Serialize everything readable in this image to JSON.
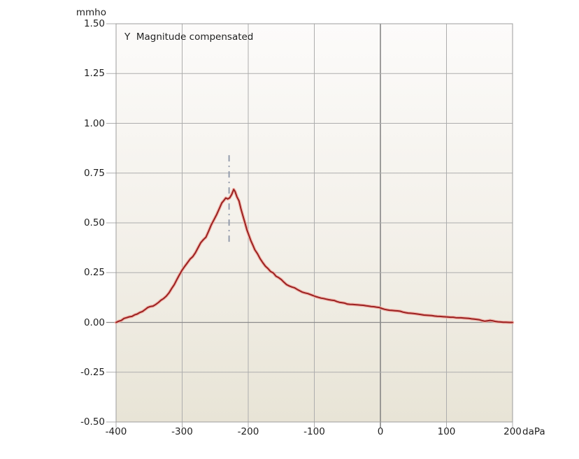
{
  "labels": {
    "y_axis_unit": "mmho",
    "x_axis_unit": "daPa",
    "title": "Y  Magnitude compensated"
  },
  "chart_data": {
    "type": "line",
    "title": "Y  Magnitude compensated",
    "ylabel": "mmho",
    "xlabel": "daPa",
    "xlim": [
      -400,
      200
    ],
    "ylim": [
      -0.5,
      1.5
    ],
    "grid": true,
    "x_ticks": [
      {
        "v": -400,
        "label": "-400"
      },
      {
        "v": -300,
        "label": "-300"
      },
      {
        "v": -200,
        "label": "-200"
      },
      {
        "v": -100,
        "label": "-100"
      },
      {
        "v": 0,
        "label": "0"
      },
      {
        "v": 100,
        "label": "100"
      },
      {
        "v": 200,
        "label": "200"
      }
    ],
    "y_ticks": [
      {
        "v": 1.5,
        "label": "1.50"
      },
      {
        "v": 1.25,
        "label": "1.25"
      },
      {
        "v": 1.0,
        "label": "1.00"
      },
      {
        "v": 0.75,
        "label": "0.75"
      },
      {
        "v": 0.5,
        "label": "0.50"
      },
      {
        "v": 0.25,
        "label": "0.25"
      },
      {
        "v": 0.0,
        "label": "0.00"
      },
      {
        "v": -0.25,
        "label": "-0.25"
      },
      {
        "v": -0.5,
        "label": "-0.50"
      }
    ],
    "peak_marker": {
      "x": -229,
      "y_from": 0.4,
      "y_to": 0.84,
      "style": "dash-dot"
    },
    "series": [
      {
        "name": "Y  Magnitude compensated",
        "peak_x": -222,
        "peak_y": 0.67,
        "points": [
          [
            -400,
            0.0
          ],
          [
            -396,
            0.006
          ],
          [
            -392,
            0.01
          ],
          [
            -388,
            0.02
          ],
          [
            -384,
            0.024
          ],
          [
            -380,
            0.028
          ],
          [
            -376,
            0.03
          ],
          [
            -372,
            0.038
          ],
          [
            -368,
            0.042
          ],
          [
            -364,
            0.05
          ],
          [
            -360,
            0.055
          ],
          [
            -356,
            0.065
          ],
          [
            -352,
            0.075
          ],
          [
            -348,
            0.08
          ],
          [
            -344,
            0.082
          ],
          [
            -340,
            0.09
          ],
          [
            -336,
            0.1
          ],
          [
            -332,
            0.112
          ],
          [
            -328,
            0.12
          ],
          [
            -324,
            0.132
          ],
          [
            -320,
            0.148
          ],
          [
            -316,
            0.17
          ],
          [
            -312,
            0.19
          ],
          [
            -308,
            0.215
          ],
          [
            -304,
            0.24
          ],
          [
            -300,
            0.263
          ],
          [
            -296,
            0.282
          ],
          [
            -292,
            0.3
          ],
          [
            -288,
            0.318
          ],
          [
            -284,
            0.33
          ],
          [
            -280,
            0.35
          ],
          [
            -276,
            0.375
          ],
          [
            -272,
            0.4
          ],
          [
            -268,
            0.415
          ],
          [
            -264,
            0.428
          ],
          [
            -260,
            0.458
          ],
          [
            -256,
            0.49
          ],
          [
            -252,
            0.515
          ],
          [
            -248,
            0.54
          ],
          [
            -244,
            0.57
          ],
          [
            -240,
            0.6
          ],
          [
            -237,
            0.612
          ],
          [
            -234,
            0.625
          ],
          [
            -231,
            0.62
          ],
          [
            -228,
            0.626
          ],
          [
            -225,
            0.643
          ],
          [
            -222,
            0.668
          ],
          [
            -220,
            0.658
          ],
          [
            -217,
            0.63
          ],
          [
            -214,
            0.61
          ],
          [
            -211,
            0.57
          ],
          [
            -208,
            0.535
          ],
          [
            -205,
            0.5
          ],
          [
            -202,
            0.465
          ],
          [
            -199,
            0.438
          ],
          [
            -196,
            0.41
          ],
          [
            -193,
            0.388
          ],
          [
            -190,
            0.365
          ],
          [
            -186,
            0.345
          ],
          [
            -182,
            0.32
          ],
          [
            -178,
            0.3
          ],
          [
            -174,
            0.282
          ],
          [
            -170,
            0.27
          ],
          [
            -166,
            0.255
          ],
          [
            -162,
            0.248
          ],
          [
            -158,
            0.232
          ],
          [
            -154,
            0.225
          ],
          [
            -150,
            0.215
          ],
          [
            -146,
            0.202
          ],
          [
            -142,
            0.19
          ],
          [
            -138,
            0.183
          ],
          [
            -134,
            0.178
          ],
          [
            -130,
            0.174
          ],
          [
            -126,
            0.166
          ],
          [
            -122,
            0.159
          ],
          [
            -118,
            0.152
          ],
          [
            -114,
            0.148
          ],
          [
            -110,
            0.145
          ],
          [
            -106,
            0.14
          ],
          [
            -102,
            0.135
          ],
          [
            -98,
            0.13
          ],
          [
            -94,
            0.126
          ],
          [
            -90,
            0.122
          ],
          [
            -86,
            0.12
          ],
          [
            -82,
            0.117
          ],
          [
            -78,
            0.114
          ],
          [
            -74,
            0.112
          ],
          [
            -70,
            0.11
          ],
          [
            -66,
            0.105
          ],
          [
            -62,
            0.101
          ],
          [
            -58,
            0.099
          ],
          [
            -54,
            0.097
          ],
          [
            -50,
            0.092
          ],
          [
            -46,
            0.091
          ],
          [
            -42,
            0.09
          ],
          [
            -38,
            0.089
          ],
          [
            -34,
            0.088
          ],
          [
            -30,
            0.087
          ],
          [
            -26,
            0.086
          ],
          [
            -22,
            0.084
          ],
          [
            -18,
            0.082
          ],
          [
            -14,
            0.08
          ],
          [
            -10,
            0.079
          ],
          [
            -6,
            0.077
          ],
          [
            -2,
            0.075
          ],
          [
            2,
            0.07
          ],
          [
            6,
            0.066
          ],
          [
            10,
            0.063
          ],
          [
            14,
            0.061
          ],
          [
            18,
            0.06
          ],
          [
            22,
            0.059
          ],
          [
            26,
            0.058
          ],
          [
            30,
            0.056
          ],
          [
            34,
            0.052
          ],
          [
            38,
            0.049
          ],
          [
            42,
            0.047
          ],
          [
            46,
            0.046
          ],
          [
            50,
            0.045
          ],
          [
            54,
            0.043
          ],
          [
            58,
            0.041
          ],
          [
            62,
            0.039
          ],
          [
            66,
            0.037
          ],
          [
            70,
            0.036
          ],
          [
            74,
            0.035
          ],
          [
            78,
            0.034
          ],
          [
            82,
            0.032
          ],
          [
            86,
            0.031
          ],
          [
            90,
            0.03
          ],
          [
            94,
            0.029
          ],
          [
            98,
            0.028
          ],
          [
            102,
            0.027
          ],
          [
            106,
            0.026
          ],
          [
            110,
            0.026
          ],
          [
            114,
            0.024
          ],
          [
            118,
            0.023
          ],
          [
            122,
            0.023
          ],
          [
            126,
            0.022
          ],
          [
            130,
            0.021
          ],
          [
            134,
            0.02
          ],
          [
            138,
            0.018
          ],
          [
            142,
            0.017
          ],
          [
            146,
            0.015
          ],
          [
            150,
            0.013
          ],
          [
            154,
            0.009
          ],
          [
            158,
            0.006
          ],
          [
            162,
            0.008
          ],
          [
            166,
            0.01
          ],
          [
            170,
            0.008
          ],
          [
            174,
            0.005
          ],
          [
            178,
            0.003
          ],
          [
            182,
            0.002
          ],
          [
            186,
            0.001
          ],
          [
            190,
            0.001
          ],
          [
            195,
            0.0
          ],
          [
            200,
            0.0
          ]
        ]
      }
    ],
    "colors": {
      "curve": "#9b2020",
      "curve_halo": "#efb0a6",
      "grid": "#adadad",
      "frame": "#9c9c9c",
      "zero_x_line": "#7f7f7f",
      "zero_y_line": "#8a8a8a",
      "marker": "#949cac",
      "plot_bg_top": "#fcfbfa",
      "plot_bg_mid": "#f3f0e9",
      "plot_bg_bottom": "#e8e4d6",
      "text": "#1f1f1f"
    }
  }
}
